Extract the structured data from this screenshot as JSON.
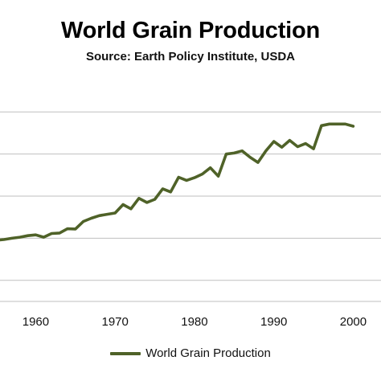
{
  "colors": {
    "series": "#4f6228",
    "grid": "#bfbfbf",
    "text": "#111111"
  },
  "chart_data": {
    "type": "line",
    "title": "World Grain Production",
    "subtitle": "Source: Earth Policy Institute, USDA",
    "xlabel": "",
    "ylabel": "",
    "xlim": [
      1955.5,
      2003.5
    ],
    "ylim": [
      400,
      2500
    ],
    "y_gridlines": [
      600,
      1000,
      1400,
      1800,
      2200
    ],
    "x_ticks": [
      "1960",
      "1970",
      "1980",
      "1990",
      "2000"
    ],
    "x_tick_values": [
      1960,
      1970,
      1980,
      1990,
      2000
    ],
    "grid": "horizontal",
    "legend_position": "bottom",
    "series": [
      {
        "name": "World Grain Production",
        "x": [
          1955,
          1956,
          1957,
          1958,
          1959,
          1960,
          1961,
          1962,
          1963,
          1964,
          1965,
          1966,
          1967,
          1968,
          1969,
          1970,
          1971,
          1972,
          1973,
          1974,
          1975,
          1976,
          1977,
          1978,
          1979,
          1980,
          1981,
          1982,
          1983,
          1984,
          1985,
          1986,
          1987,
          1988,
          1989,
          1990,
          1991,
          1992,
          1993,
          1994,
          1995,
          1996,
          1997,
          1998,
          1999,
          2000
        ],
        "y": [
          980,
          988,
          1000,
          1010,
          1025,
          1032,
          1010,
          1045,
          1050,
          1090,
          1088,
          1160,
          1190,
          1215,
          1228,
          1240,
          1320,
          1280,
          1380,
          1340,
          1370,
          1470,
          1440,
          1580,
          1550,
          1575,
          1610,
          1670,
          1590,
          1800,
          1810,
          1830,
          1770,
          1720,
          1830,
          1920,
          1865,
          1930,
          1870,
          1900,
          1850,
          2070,
          2085,
          2085,
          2085,
          2065
        ]
      }
    ]
  }
}
